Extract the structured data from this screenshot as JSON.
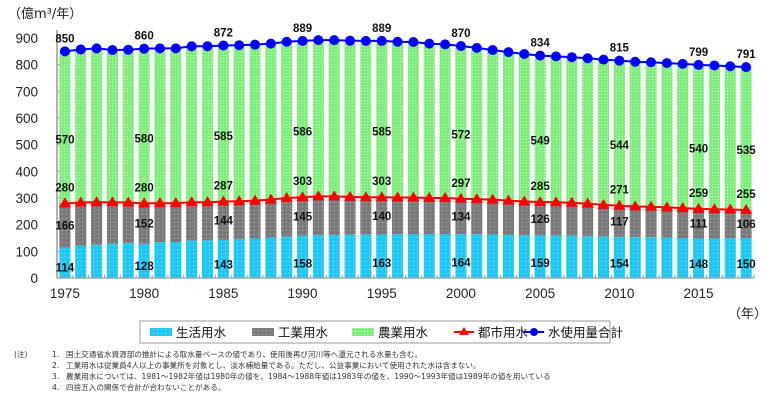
{
  "chart_data": {
    "type": "bar",
    "stacked": true,
    "y_unit_label": "（億m³/年）",
    "x_unit_label": "（年）",
    "ylim": [
      0,
      900
    ],
    "y_ticks": [
      0,
      100,
      200,
      300,
      400,
      500,
      600,
      700,
      800,
      900
    ],
    "x_tick_labels": [
      "1975",
      "1980",
      "1985",
      "1990",
      "1995",
      "2000",
      "2005",
      "2010",
      "2015"
    ],
    "categories": [
      1975,
      1976,
      1977,
      1978,
      1979,
      1980,
      1981,
      1982,
      1983,
      1984,
      1985,
      1986,
      1987,
      1988,
      1989,
      1990,
      1991,
      1992,
      1993,
      1994,
      1995,
      1996,
      1997,
      1998,
      1999,
      2000,
      2001,
      2002,
      2003,
      2004,
      2005,
      2006,
      2007,
      2008,
      2009,
      2010,
      2011,
      2012,
      2013,
      2014,
      2015,
      2016,
      2017,
      2018
    ],
    "series": [
      {
        "name": "生活用水",
        "kind": "bar",
        "color": "#1ec8f5",
        "values": [
          114,
          121,
          125,
          128,
          131,
          128,
          134,
          135,
          140,
          141,
          143,
          145,
          148,
          151,
          155,
          158,
          160,
          161,
          162,
          162,
          163,
          164,
          165,
          165,
          165,
          164,
          164,
          163,
          161,
          160,
          159,
          159,
          158,
          157,
          156,
          154,
          153,
          153,
          152,
          150,
          148,
          148,
          149,
          150
        ]
      },
      {
        "name": "工業用水",
        "kind": "bar",
        "color": "#7d7d7d",
        "values": [
          166,
          162,
          159,
          156,
          152,
          152,
          147,
          146,
          144,
          143,
          144,
          143,
          142,
          143,
          145,
          145,
          146,
          145,
          142,
          141,
          140,
          138,
          137,
          135,
          135,
          134,
          132,
          131,
          129,
          127,
          126,
          125,
          124,
          122,
          118,
          117,
          115,
          114,
          113,
          112,
          111,
          110,
          108,
          106
        ]
      },
      {
        "name": "農業用水",
        "kind": "bar",
        "color": "#8ef08a",
        "values": [
          570,
          574,
          577,
          571,
          573,
          580,
          580,
          580,
          585,
          585,
          585,
          585,
          585,
          585,
          586,
          586,
          586,
          586,
          586,
          586,
          585,
          584,
          583,
          579,
          576,
          572,
          567,
          561,
          557,
          553,
          549,
          547,
          546,
          545,
          545,
          544,
          543,
          542,
          541,
          541,
          540,
          539,
          537,
          535
        ]
      },
      {
        "name": "都市用水",
        "kind": "line",
        "color": "#ff0000",
        "marker": "triangle",
        "values": [
          280,
          283,
          284,
          284,
          283,
          280,
          281,
          281,
          284,
          284,
          287,
          288,
          290,
          294,
          300,
          303,
          306,
          306,
          304,
          303,
          303,
          302,
          302,
          300,
          300,
          297,
          296,
          294,
          290,
          287,
          285,
          284,
          282,
          279,
          274,
          271,
          268,
          267,
          265,
          262,
          259,
          258,
          257,
          255
        ]
      },
      {
        "name": "水使用量合計",
        "kind": "line",
        "color": "#0000ff",
        "marker": "circle",
        "values": [
          850,
          857,
          861,
          855,
          856,
          860,
          861,
          861,
          869,
          869,
          872,
          873,
          875,
          879,
          886,
          889,
          892,
          892,
          890,
          889,
          889,
          886,
          885,
          879,
          876,
          870,
          863,
          855,
          847,
          840,
          834,
          831,
          828,
          824,
          819,
          815,
          811,
          809,
          806,
          803,
          799,
          797,
          794,
          791
        ]
      }
    ],
    "data_labels": {
      "years": [
        "1975",
        "1980",
        "1985",
        "1990",
        "1995",
        "2000",
        "2005",
        "2010",
        "2015",
        "2018"
      ],
      "total": [
        "850",
        "860",
        "872",
        "889",
        "889",
        "870",
        "834",
        "815",
        "799",
        "791"
      ],
      "agri": [
        "570",
        "580",
        "585",
        "586",
        "585",
        "572",
        "549",
        "544",
        "540",
        "535"
      ],
      "urban": [
        "280",
        "280",
        "287",
        "303",
        "303",
        "297",
        "285",
        "271",
        "259",
        "255"
      ],
      "industry": [
        "166",
        "152",
        "144",
        "145",
        "140",
        "134",
        "126",
        "117",
        "111",
        "106"
      ],
      "domestic": [
        "114",
        "128",
        "143",
        "158",
        "163",
        "164",
        "159",
        "154",
        "148",
        "150"
      ]
    },
    "legend": [
      "生活用水",
      "工業用水",
      "農業用水",
      "都市用水",
      "水使用量合計"
    ],
    "legend_position": "bottom"
  },
  "notes": {
    "prefix": "(注)",
    "items": [
      {
        "num": "1.",
        "text": "国土交通省水資源部の推計による取水量ベースの値であり、使用後再び河川等へ還元される水量も含む。"
      },
      {
        "num": "2.",
        "text": "工業用水は従業員4人以上の事業所を対象とし、淡水補給量である。ただし、公益事業において使用された水は含まない。"
      },
      {
        "num": "3.",
        "text": "農業用水については、1981～1982年値は1980年の値を、1984～1988年値は1983年の値を、1990～1993年値は1989年の値を用いている"
      },
      {
        "num": "4.",
        "text": "四捨五入の関係で合計が合わないことがある。"
      }
    ]
  }
}
